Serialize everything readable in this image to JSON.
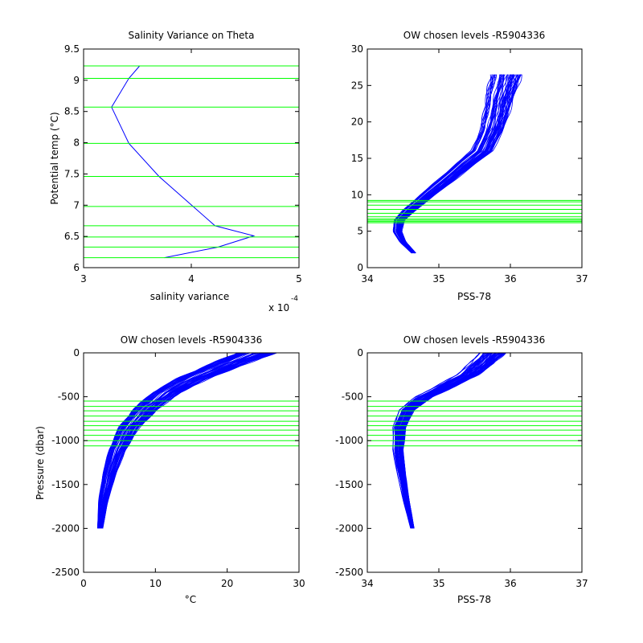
{
  "chart_data": [
    {
      "type": "line",
      "title": "Salinity Variance on Theta",
      "xlabel": "salinity variance",
      "ylabel": "Potential temp (°C)",
      "xlim": [
        3,
        5
      ],
      "ylim": [
        6,
        9.5
      ],
      "xticks": [
        3,
        4,
        5
      ],
      "yticks": [
        6,
        6.5,
        7,
        7.5,
        8,
        8.5,
        9,
        9.5
      ],
      "x_exponent_label": "x 10",
      "x_exponent_power": "-4",
      "series": [
        {
          "color": "#0000ff",
          "x": [
            3.52,
            3.42,
            3.26,
            3.42,
            3.7,
            4.22,
            4.58,
            4.25,
            3.75
          ],
          "y": [
            9.23,
            9.03,
            8.57,
            7.99,
            7.46,
            6.67,
            6.51,
            6.33,
            6.16
          ]
        }
      ],
      "hlines": [
        9.23,
        9.03,
        8.57,
        7.99,
        7.46,
        6.98,
        6.67,
        6.49,
        6.33,
        6.16
      ],
      "hline_color": "#00ff00"
    },
    {
      "type": "line",
      "title": "OW chosen levels -R5904336",
      "xlabel": "PSS-78",
      "ylabel": "",
      "xlim": [
        34,
        37
      ],
      "ylim": [
        0,
        30
      ],
      "xticks": [
        34,
        35,
        36,
        37
      ],
      "yticks": [
        0,
        5,
        10,
        15,
        20,
        25,
        30
      ],
      "centerline": {
        "x": [
          34.65,
          34.5,
          34.42,
          34.45,
          34.6,
          34.85,
          35.1,
          35.35,
          35.6,
          35.75,
          35.8,
          35.85,
          35.9,
          35.95
        ],
        "y": [
          2,
          3.5,
          5,
          6.5,
          8,
          10,
          12,
          14,
          16,
          19,
          21,
          23,
          25,
          26.5
        ]
      },
      "spread": 0.12,
      "n_profiles": 60,
      "hlines": [
        9.23,
        9.03,
        8.57,
        7.99,
        7.46,
        6.98,
        6.67,
        6.49,
        6.33,
        6.16
      ],
      "hline_color": "#00ff00",
      "line_color": "#0000ff"
    },
    {
      "type": "line",
      "title": "OW chosen levels -R5904336",
      "xlabel": "°C",
      "ylabel": "Pressure (dbar)",
      "xlim": [
        0,
        30
      ],
      "ylim": [
        -2500,
        0
      ],
      "xticks": [
        0,
        10,
        20,
        30
      ],
      "yticks": [
        -2500,
        -2000,
        -1500,
        -1000,
        -500,
        0
      ],
      "centerline": {
        "x": [
          2.3,
          2.7,
          3.5,
          4.7,
          6.3,
          8.5,
          11.5,
          15.5,
          20,
          24
        ],
        "y": [
          -2000,
          -1700,
          -1400,
          -1100,
          -850,
          -650,
          -450,
          -280,
          -130,
          0
        ]
      },
      "spread": 1.5,
      "n_profiles": 60,
      "hlines": [
        -550,
        -610,
        -660,
        -720,
        -780,
        -830,
        -880,
        -940,
        -1000,
        -1060
      ],
      "hline_color": "#00ff00",
      "line_color": "#0000ff"
    },
    {
      "type": "line",
      "title": "OW chosen levels -R5904336",
      "xlabel": "PSS-78",
      "ylabel": "",
      "xlim": [
        34,
        37
      ],
      "ylim": [
        -2500,
        0
      ],
      "xticks": [
        34,
        35,
        36,
        37
      ],
      "yticks": [
        -2500,
        -2000,
        -1500,
        -1000,
        -500,
        0
      ],
      "centerline": {
        "x": [
          34.63,
          34.55,
          34.48,
          34.43,
          34.45,
          34.55,
          34.8,
          35.1,
          35.4,
          35.6,
          35.75
        ],
        "y": [
          -2000,
          -1700,
          -1400,
          -1100,
          -850,
          -650,
          -500,
          -380,
          -250,
          -120,
          0
        ]
      },
      "spread": 0.1,
      "n_profiles": 60,
      "hlines": [
        -550,
        -610,
        -660,
        -720,
        -780,
        -830,
        -880,
        -940,
        -1000,
        -1060
      ],
      "hline_color": "#00ff00",
      "line_color": "#0000ff"
    }
  ]
}
